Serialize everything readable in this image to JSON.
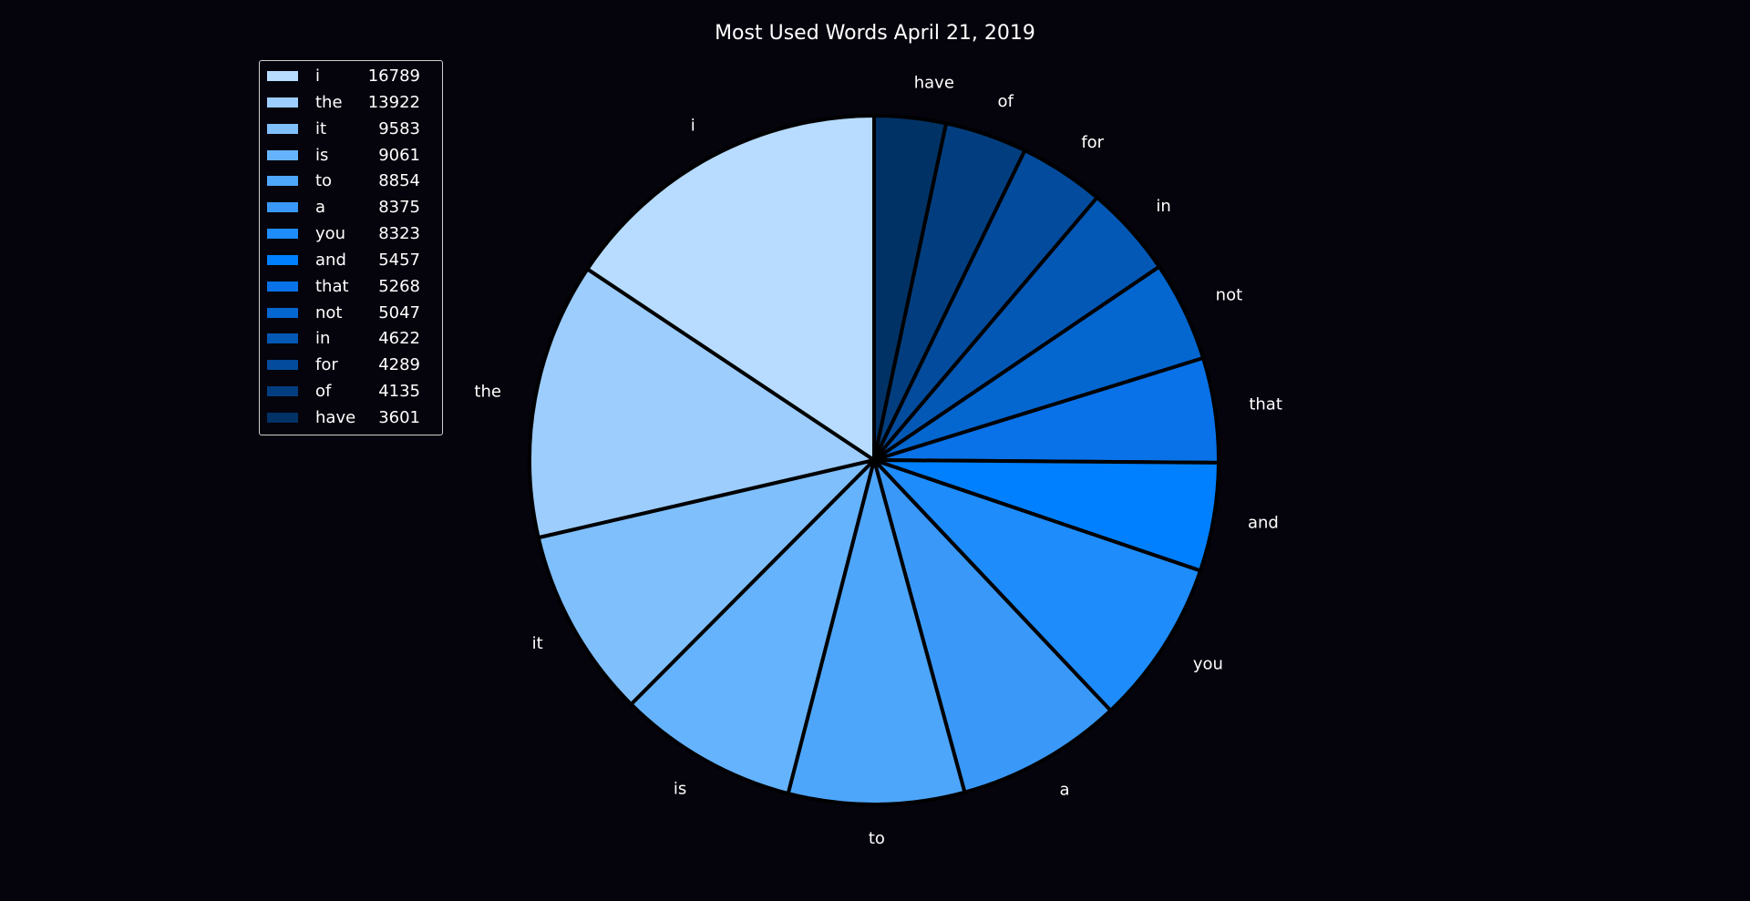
{
  "chart_data": {
    "type": "pie",
    "title": "Most Used Words April 21, 2019",
    "categories": [
      "i",
      "the",
      "it",
      "is",
      "to",
      "a",
      "you",
      "and",
      "that",
      "not",
      "in",
      "for",
      "of",
      "have"
    ],
    "values": [
      16789,
      13922,
      9583,
      9061,
      8854,
      8375,
      8323,
      5457,
      5268,
      5047,
      4622,
      4289,
      4135,
      3601
    ],
    "colors": [
      "#b7dcff",
      "#9dcdfd",
      "#7fbffc",
      "#65b3fc",
      "#4ea6fa",
      "#3a99f8",
      "#1e8cfb",
      "#0080fe",
      "#0a72e8",
      "#0466cf",
      "#0458b5",
      "#034b9c",
      "#023e7f",
      "#013265"
    ],
    "legend_entries": [
      {
        "word": "i",
        "count": "16789"
      },
      {
        "word": "the",
        "count": "13922"
      },
      {
        "word": "it",
        "count": "9583"
      },
      {
        "word": "is",
        "count": "9061"
      },
      {
        "word": "to",
        "count": "8854"
      },
      {
        "word": "a",
        "count": "8375"
      },
      {
        "word": "you",
        "count": "8323"
      },
      {
        "word": "and",
        "count": "5457"
      },
      {
        "word": "that",
        "count": "5268"
      },
      {
        "word": "not",
        "count": "5047"
      },
      {
        "word": "in",
        "count": "4622"
      },
      {
        "word": "for",
        "count": "4289"
      },
      {
        "word": "of",
        "count": "4135"
      },
      {
        "word": "have",
        "count": "3601"
      }
    ],
    "start_angle": "top, counterclockwise",
    "legend_placement": "top-left",
    "background_color": "#05030c",
    "edge_color": "#000000"
  }
}
